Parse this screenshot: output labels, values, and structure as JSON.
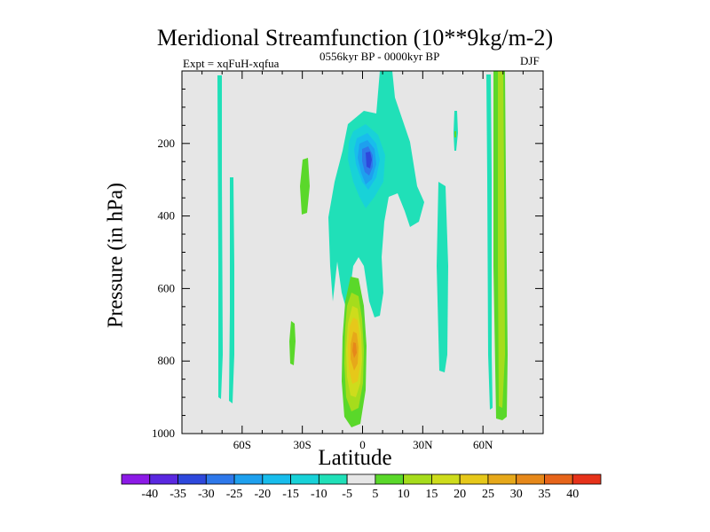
{
  "title": "Meridional Streamfunction (10**9kg/m-2)",
  "experiment_label": "Expt = xqFuH-xqfua",
  "period_label": "0556kyr BP - 0000kyr BP",
  "season_label": "DJF",
  "colors": {
    "background_panel": "#e6e6e6",
    "colorbar_levels": [
      "#8c1ae6",
      "#5a28e0",
      "#2e48dc",
      "#2e78ea",
      "#1ea0ee",
      "#18bdec",
      "#18d2d8",
      "#20e0b8",
      "#e6e6e6",
      "#5ad82a",
      "#a6dc1c",
      "#cedc1c",
      "#e6c81a",
      "#e6a81a",
      "#e6881a",
      "#e6641a",
      "#e6321a"
    ]
  },
  "chart_data": {
    "type": "heatmap",
    "subtype": "filled contour (latitude-pressure cross section)",
    "title": "Meridional Streamfunction (10**9kg/m-2)",
    "xlabel": "Latitude",
    "ylabel": "Pressure (in hPa)",
    "xlim": [
      -90,
      90
    ],
    "ylim": [
      1000,
      0
    ],
    "x_ticks": [
      {
        "value": -60,
        "label": "60S"
      },
      {
        "value": -30,
        "label": "30S"
      },
      {
        "value": 0,
        "label": "0"
      },
      {
        "value": 30,
        "label": "30N"
      },
      {
        "value": 60,
        "label": "60N"
      }
    ],
    "y_ticks": [
      {
        "value": 200,
        "label": "200"
      },
      {
        "value": 400,
        "label": "400"
      },
      {
        "value": 600,
        "label": "600"
      },
      {
        "value": 800,
        "label": "800"
      },
      {
        "value": 1000,
        "label": "1000"
      }
    ],
    "colorbar_labels": [
      "-40",
      "-35",
      "-30",
      "-25",
      "-20",
      "-15",
      "-10",
      "-5",
      "5",
      "10",
      "15",
      "20",
      "25",
      "30",
      "35",
      "40"
    ],
    "features": [
      {
        "name": "positive cell near equator",
        "lat": -3,
        "pressure_hpa": 780,
        "peak_value": 30
      },
      {
        "name": "negative cell upper troposphere",
        "lat": 5,
        "pressure_hpa": 230,
        "peak_value": -30
      },
      {
        "name": "positive band 63N",
        "lat": 63,
        "pressure_range_hpa": [
          0,
          970
        ],
        "peak_value": 15
      },
      {
        "name": "negative band 70S",
        "lat": -69,
        "pressure_range_hpa": [
          60,
          900
        ],
        "peak_value": -5
      },
      {
        "name": "negative band 35N",
        "lat": 38,
        "pressure_range_hpa": [
          290,
          820
        ],
        "peak_value": -5
      },
      {
        "name": "positive patch 30S",
        "lat": -29,
        "pressure_range_hpa": [
          240,
          400
        ],
        "peak_value": 5
      }
    ]
  }
}
